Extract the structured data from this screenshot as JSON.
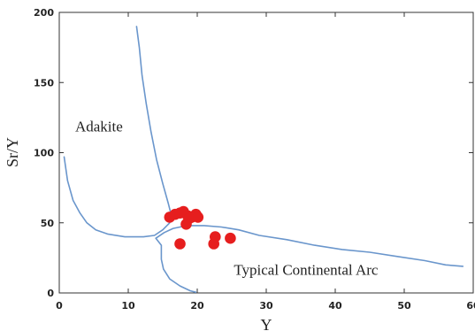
{
  "chart_data": {
    "type": "scatter",
    "title": "",
    "xlabel": "Y",
    "ylabel": "Sr/Y",
    "xlim": [
      0,
      60
    ],
    "ylim": [
      0,
      200
    ],
    "xticks": [
      0,
      10,
      20,
      30,
      40,
      50,
      60
    ],
    "yticks": [
      0,
      50,
      100,
      150,
      200
    ],
    "xtick_labels": [
      "0",
      "10",
      "20",
      "30",
      "40",
      "50",
      "60"
    ],
    "ytick_labels": [
      "0",
      "50",
      "100",
      "150",
      "200"
    ],
    "grid": false,
    "legend": false,
    "colors": {
      "points": "#e61e1e",
      "boundaries": "#6a96cc",
      "axes": "#333333"
    },
    "annotations": [
      {
        "text": "Adakite",
        "x": 2.3,
        "y": 115
      },
      {
        "text": "Typical Continental Arc",
        "x": 25.3,
        "y": 13
      }
    ],
    "boundaries": [
      {
        "points": [
          [
            11.2,
            190
          ],
          [
            11.6,
            175
          ],
          [
            12.0,
            155
          ],
          [
            12.6,
            135
          ],
          [
            13.3,
            115
          ],
          [
            14.1,
            95
          ],
          [
            15.0,
            78
          ],
          [
            15.8,
            64
          ],
          [
            16.2,
            56
          ],
          [
            16.0,
            50
          ],
          [
            15.0,
            45
          ],
          [
            13.8,
            41
          ],
          [
            12.2,
            40
          ],
          [
            9.5,
            40
          ],
          [
            7.0,
            42
          ],
          [
            5.3,
            45
          ],
          [
            4.0,
            50
          ],
          [
            3.0,
            57
          ],
          [
            2.0,
            66
          ],
          [
            1.2,
            80
          ],
          [
            0.7,
            97
          ]
        ]
      },
      {
        "points": [
          [
            14.0,
            39
          ],
          [
            15.2,
            43
          ],
          [
            16.5,
            46
          ],
          [
            18.5,
            48
          ],
          [
            21.0,
            48
          ],
          [
            23.5,
            47
          ],
          [
            26.0,
            45
          ],
          [
            29.0,
            41
          ],
          [
            33.0,
            38
          ],
          [
            37.0,
            34
          ],
          [
            41.0,
            31
          ],
          [
            45.0,
            29
          ],
          [
            49.0,
            26
          ],
          [
            53.0,
            23
          ],
          [
            56.0,
            20
          ],
          [
            58.5,
            19
          ]
        ]
      },
      {
        "points": [
          [
            14.0,
            39
          ],
          [
            14.8,
            34
          ],
          [
            14.8,
            24
          ],
          [
            15.1,
            17
          ],
          [
            16.0,
            10
          ],
          [
            17.5,
            5
          ],
          [
            19.0,
            1.5
          ],
          [
            19.8,
            0.5
          ]
        ]
      }
    ],
    "series": [
      {
        "points": [
          {
            "x": 16.0,
            "y": 54
          },
          {
            "x": 16.8,
            "y": 56
          },
          {
            "x": 17.5,
            "y": 57
          },
          {
            "x": 18.0,
            "y": 58
          },
          {
            "x": 18.6,
            "y": 55
          },
          {
            "x": 19.2,
            "y": 54
          },
          {
            "x": 19.8,
            "y": 56
          },
          {
            "x": 20.1,
            "y": 54
          },
          {
            "x": 18.8,
            "y": 53
          },
          {
            "x": 18.4,
            "y": 49
          },
          {
            "x": 17.5,
            "y": 35
          },
          {
            "x": 22.6,
            "y": 40
          },
          {
            "x": 22.4,
            "y": 35
          },
          {
            "x": 24.8,
            "y": 39
          }
        ]
      }
    ]
  }
}
